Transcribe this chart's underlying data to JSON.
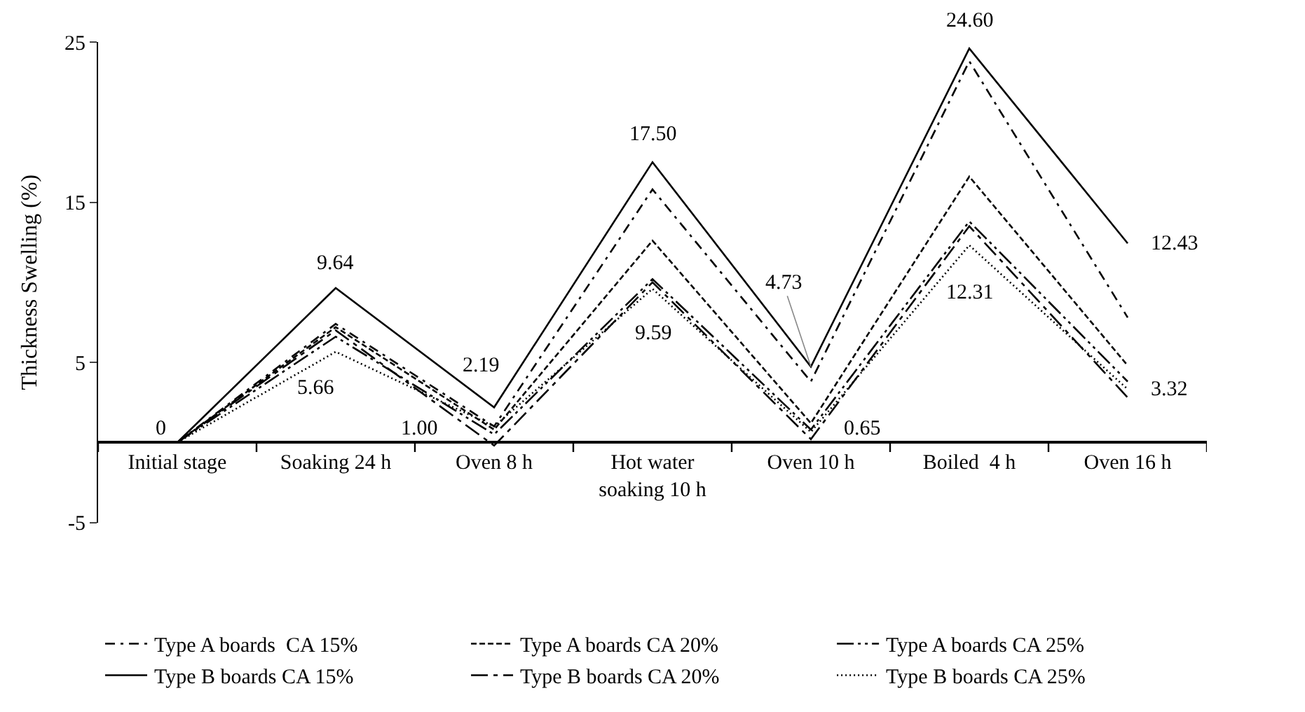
{
  "chart_data": {
    "type": "line",
    "ylabel": "Thickness Swelling (%)",
    "categories": [
      "Initial stage",
      "Soaking 24 h",
      "Oven 8 h",
      "Hot water soaking 10 h",
      "Oven 10 h",
      "Boiled  4 h",
      "Oven 16 h"
    ],
    "series": [
      {
        "name": "Type A boards  CA 15%",
        "color": "#000000",
        "line_style": "dashdot",
        "values": [
          0,
          7.4,
          1.0,
          15.8,
          3.8,
          23.8,
          7.8
        ]
      },
      {
        "name": "Type A boards CA 20%",
        "color": "#000000",
        "line_style": "dashed",
        "values": [
          0,
          7.2,
          0.8,
          12.6,
          1.2,
          16.6,
          4.8
        ]
      },
      {
        "name": "Type A boards CA 25%",
        "color": "#000000",
        "line_style": "longdashdotdot",
        "values": [
          0,
          6.6,
          0.5,
          10.2,
          0.8,
          13.8,
          3.8
        ]
      },
      {
        "name": "Type B boards CA 15%",
        "color": "#000000",
        "line_style": "solid",
        "values": [
          0,
          9.64,
          2.19,
          17.5,
          4.73,
          24.6,
          12.43
        ]
      },
      {
        "name": "Type B boards CA 20%",
        "color": "#000000",
        "line_style": "longdashdot",
        "values": [
          0,
          7.0,
          -0.2,
          10.0,
          0.2,
          13.5,
          2.8
        ]
      },
      {
        "name": "Type B boards CA 25%",
        "color": "#000000",
        "line_style": "dotted",
        "values": [
          0,
          5.66,
          1.0,
          9.59,
          0.65,
          12.31,
          3.32
        ]
      }
    ],
    "annotations": [
      {
        "text": "0",
        "x": "Initial stage",
        "y": 0
      },
      {
        "text": "9.64",
        "x": "Soaking 24 h",
        "y": 9.64
      },
      {
        "text": "5.66",
        "x": "Soaking 24 h",
        "y": 5.66
      },
      {
        "text": "2.19",
        "x": "Oven 8 h",
        "y": 2.19
      },
      {
        "text": "1.00",
        "x": "Oven 8 h",
        "y": 1.0
      },
      {
        "text": "17.50",
        "x": "Hot water soaking 10 h",
        "y": 17.5
      },
      {
        "text": "9.59",
        "x": "Hot water soaking 10 h",
        "y": 9.59
      },
      {
        "text": "4.73",
        "x": "Oven 10 h",
        "y": 4.73
      },
      {
        "text": "0.65",
        "x": "Oven 10 h",
        "y": 0.65
      },
      {
        "text": "24.60",
        "x": "Boiled  4 h",
        "y": 24.6
      },
      {
        "text": "12.31",
        "x": "Boiled  4 h",
        "y": 12.31
      },
      {
        "text": "12.43",
        "x": "Oven 16 h",
        "y": 12.43
      },
      {
        "text": "3.32",
        "x": "Oven 16 h",
        "y": 3.32
      }
    ],
    "ylim": [
      -5,
      25
    ],
    "yticks": [
      -5,
      5,
      15,
      25
    ],
    "legend": "bottom",
    "marker": "none"
  }
}
